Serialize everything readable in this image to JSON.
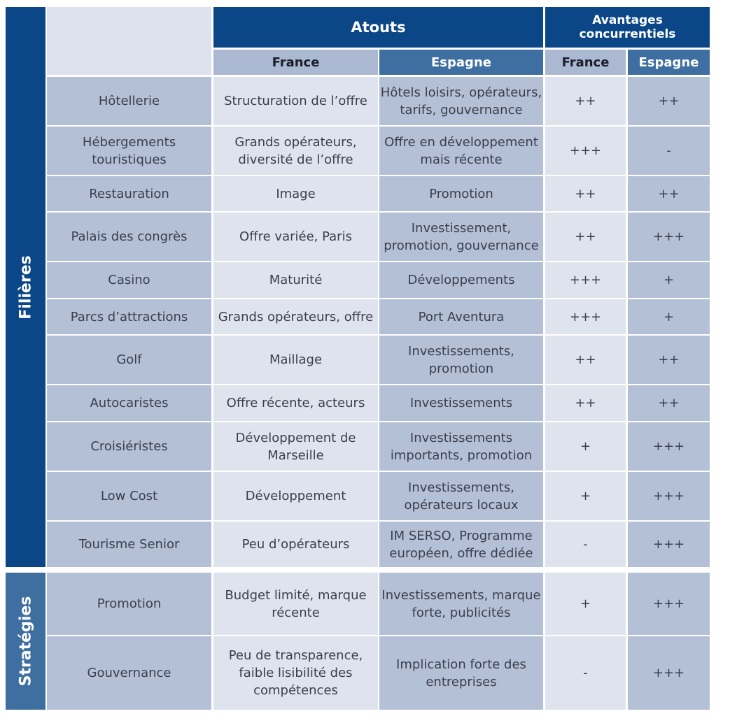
{
  "headers": {
    "atouts": "Atouts",
    "avantages": "Avantages\nconcurrentiels",
    "france": "France",
    "espagne": "Espagne",
    "france2": "France",
    "espagne2": "Espagne"
  },
  "sections": {
    "filieres": "Filières",
    "strategies": "Stratégies"
  },
  "rows": [
    {
      "label": "Hôtellerie",
      "atout_france": "Structuration de l’offre",
      "atout_espagne": "Hôtels loisirs, opérateurs,\ntarifs, gouvernance",
      "avantage_france": "++",
      "avantage_espagne": "++"
    },
    {
      "label": "Hébergements\ntouristiques",
      "atout_france": "Grands opérateurs,\ndiversité de l’offre",
      "atout_espagne": "Offre en développement\nmais récente",
      "avantage_france": "+++",
      "avantage_espagne": "-"
    },
    {
      "label": "Restauration",
      "atout_france": "Image",
      "atout_espagne": "Promotion",
      "avantage_france": "++",
      "avantage_espagne": "++"
    },
    {
      "label": "Palais des congrès",
      "atout_france": "Offre variée, Paris",
      "atout_espagne": "Investissement,\npromotion, gouvernance",
      "avantage_france": "++",
      "avantage_espagne": "+++"
    },
    {
      "label": "Casino",
      "atout_france": "Maturité",
      "atout_espagne": "Développements",
      "avantage_france": "+++",
      "avantage_espagne": "+"
    },
    {
      "label": "Parcs d’attractions",
      "atout_france": "Grands opérateurs, offre",
      "atout_espagne": "Port Aventura",
      "avantage_france": "+++",
      "avantage_espagne": "+"
    },
    {
      "label": "Golf",
      "atout_france": "Maillage",
      "atout_espagne": "Investissements,\npromotion",
      "avantage_france": "++",
      "avantage_espagne": "++"
    },
    {
      "label": "Autocaristes",
      "atout_france": "Offre récente, acteurs",
      "atout_espagne": "Investissements",
      "avantage_france": "++",
      "avantage_espagne": "++"
    },
    {
      "label": "Croisiéristes",
      "atout_france": "Développement de\nMarseille",
      "atout_espagne": "Investissements\nimportants, promotion",
      "avantage_france": "+",
      "avantage_espagne": "+++"
    },
    {
      "label": "Low Cost",
      "atout_france": "Développement",
      "atout_espagne": "Investissements,\nopérateurs locaux",
      "avantage_france": "+",
      "avantage_espagne": "+++"
    },
    {
      "label": "Tourisme Senior",
      "atout_france": "Peu d’opérateurs",
      "atout_espagne": "IM SERSO, Programme\neuropéen, offre dédiée",
      "avantage_france": "-",
      "avantage_espagne": "+++"
    },
    {
      "label": "Promotion",
      "atout_france": "Budget limité, marque\nrécente",
      "atout_espagne": "Investissements, marque\nforte, publicités",
      "avantage_france": "+",
      "avantage_espagne": "+++"
    },
    {
      "label": "Gouvernance",
      "atout_france": "Peu de transparence,\nfaible lisibilité des\ncompétences",
      "atout_espagne": "Implication forte des\nentreprises",
      "avantage_france": "-",
      "avantage_espagne": "+++"
    }
  ]
}
